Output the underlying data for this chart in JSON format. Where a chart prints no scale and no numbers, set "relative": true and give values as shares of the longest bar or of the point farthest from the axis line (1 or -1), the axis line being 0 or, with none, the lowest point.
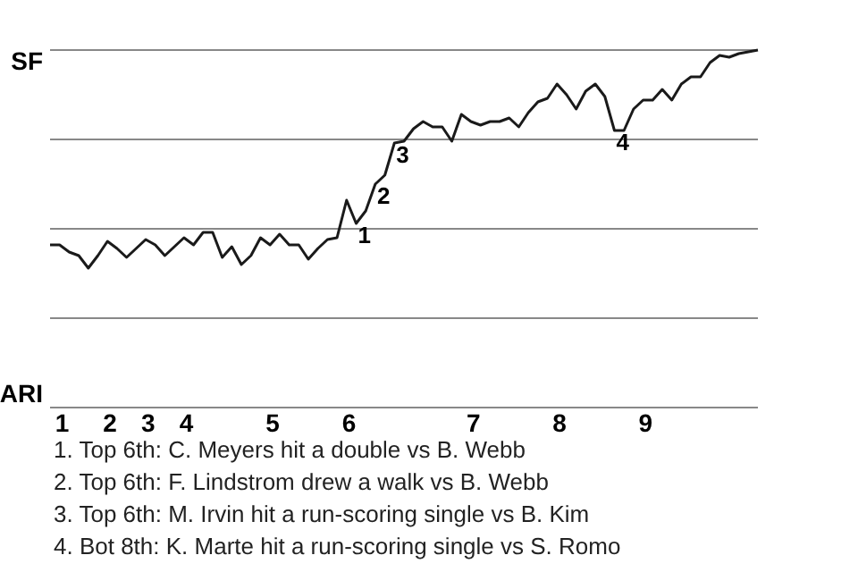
{
  "chart_data": {
    "type": "line",
    "relative": true,
    "categories": [
      null,
      "1",
      null,
      null,
      null,
      null,
      "2",
      null,
      null,
      null,
      "3",
      null,
      null,
      null,
      "4",
      null,
      null,
      null,
      null,
      null,
      null,
      null,
      null,
      "5",
      null,
      null,
      null,
      null,
      null,
      null,
      null,
      "6",
      null,
      null,
      null,
      null,
      null,
      null,
      null,
      null,
      null,
      null,
      null,
      null,
      "7",
      null,
      null,
      null,
      null,
      null,
      null,
      null,
      null,
      "8",
      null,
      null,
      null,
      null,
      null,
      null,
      null,
      null,
      "9",
      null,
      null,
      null,
      null,
      null,
      null,
      null,
      null,
      null,
      null,
      null,
      null
    ],
    "series": [
      {
        "color": "#1a1a1a",
        "values": [
          0.455,
          0.455,
          0.435,
          0.425,
          0.39,
          0.425,
          0.465,
          0.445,
          0.42,
          0.445,
          0.47,
          0.455,
          0.425,
          0.45,
          0.475,
          0.455,
          0.49,
          0.49,
          0.42,
          0.45,
          0.4,
          0.425,
          0.475,
          0.455,
          0.485,
          0.455,
          0.455,
          0.415,
          0.445,
          0.47,
          0.475,
          0.58,
          0.515,
          0.55,
          0.625,
          0.65,
          0.74,
          0.745,
          0.78,
          0.8,
          0.785,
          0.785,
          0.745,
          0.82,
          0.8,
          0.79,
          0.8,
          0.8,
          0.81,
          0.785,
          0.825,
          0.855,
          0.865,
          0.905,
          0.875,
          0.835,
          0.885,
          0.905,
          0.87,
          0.775,
          0.775,
          0.835,
          0.86,
          0.86,
          0.89,
          0.86,
          0.905,
          0.925,
          0.925,
          0.965,
          0.985,
          0.98,
          0.99,
          0.995,
          1
        ]
      }
    ],
    "ref_lines": [
      {
        "axis": "y",
        "value": 0,
        "label": "ARI",
        "color": "#888888"
      },
      {
        "axis": "y",
        "value": 0.25,
        "label": null,
        "color": "#888888"
      },
      {
        "axis": "y",
        "value": 0.5,
        "label": null,
        "color": "#888888"
      },
      {
        "axis": "y",
        "value": 0.75,
        "label": null,
        "color": "#888888"
      },
      {
        "axis": "y",
        "value": 1,
        "label": "SF",
        "color": "#888888"
      }
    ],
    "annotations": [
      {
        "text": "1",
        "y": 0.515
      },
      {
        "text": "2",
        "y": 0.625
      },
      {
        "text": "3",
        "y": 0.74
      },
      {
        "text": "4",
        "y": 0.775
      },
      "1. Top 6th: C. Meyers hit a double vs B. Webb",
      "2. Top 6th: F. Lindstrom drew a walk vs B. Webb",
      "3. Top 6th: M. Irvin hit a run-scoring single vs B. Kim",
      "4. Bot 8th: K. Marte hit a run-scoring single vs S. Romo"
    ]
  }
}
